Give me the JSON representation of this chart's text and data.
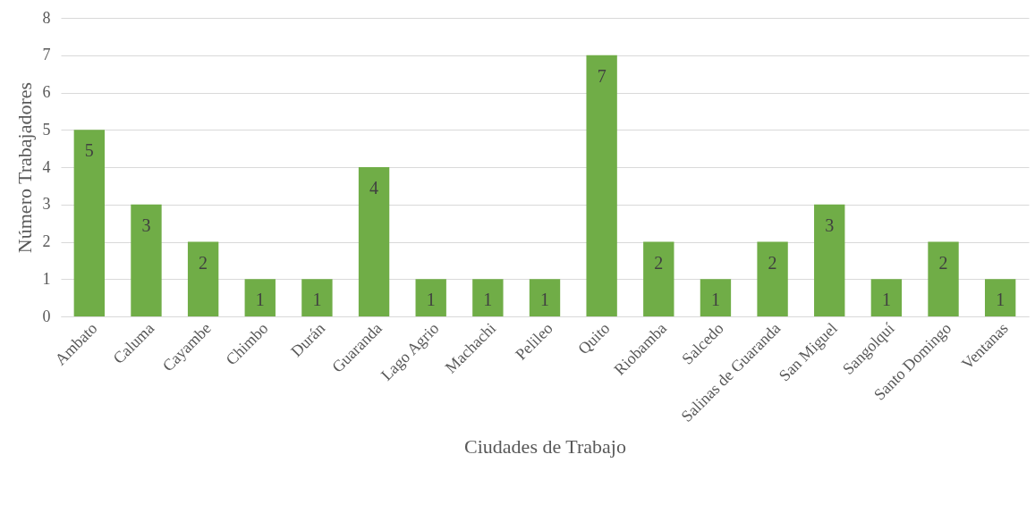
{
  "chart_data": {
    "type": "bar",
    "xlabel": "Ciudades de Trabajo",
    "ylabel": "Número Trabajadores",
    "categories": [
      "Ambato",
      "Caluma",
      "Cayambe",
      "Chimbo",
      "Durán",
      "Guaranda",
      "Lago Agrio",
      "Machachi",
      "Pelileo",
      "Quito",
      "Riobamba",
      "Salcedo",
      "Salinas de Guaranda",
      "San Miguel",
      "Sangolquí",
      "Santo Domingo",
      "Ventanas"
    ],
    "values": [
      5,
      3,
      2,
      1,
      1,
      4,
      1,
      1,
      1,
      7,
      2,
      1,
      2,
      3,
      1,
      2,
      1
    ],
    "color": "#70ad47",
    "ylim": [
      0,
      8
    ],
    "yticks": [
      0,
      1,
      2,
      3,
      4,
      5,
      6,
      7,
      8
    ],
    "grid": "y",
    "data_labels": true
  }
}
